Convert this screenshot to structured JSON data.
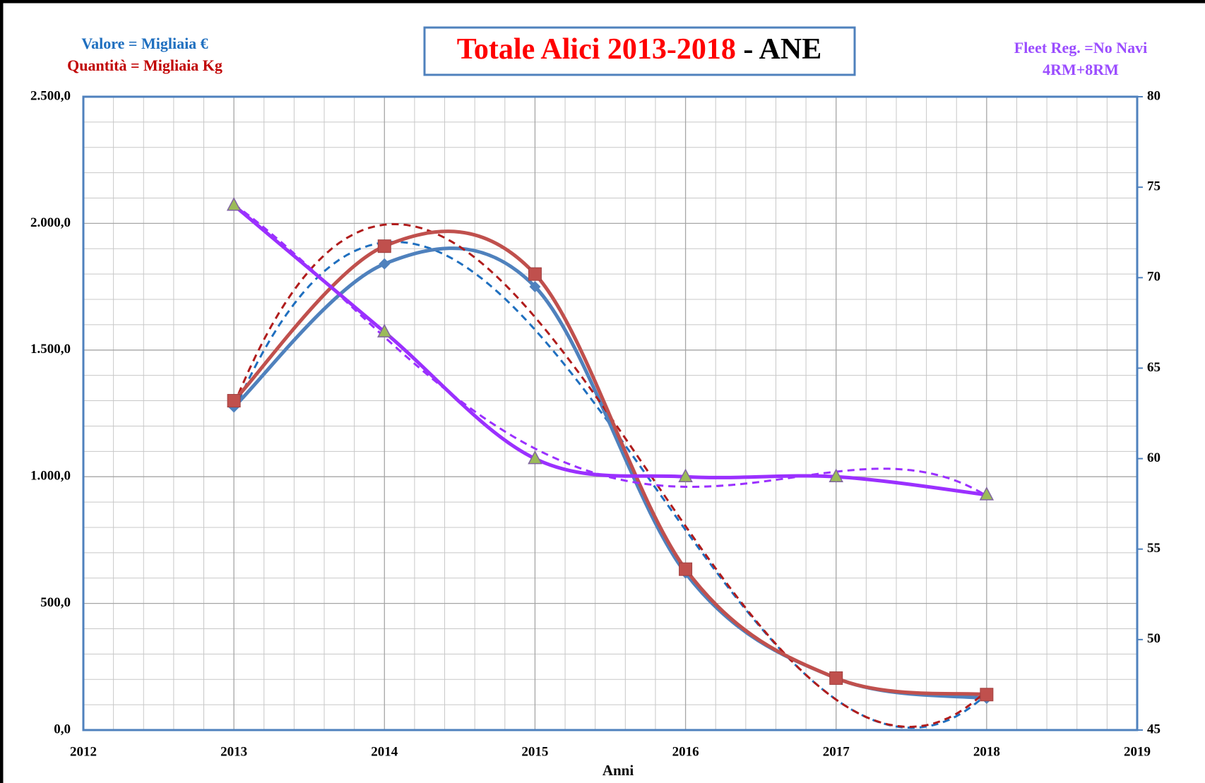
{
  "chart_data": {
    "type": "line",
    "title": [
      "Totale Alici 2013-2018",
      " - ANE"
    ],
    "annotations": [
      "4RM+8RM"
    ],
    "x_label": "Anni",
    "x": [
      2013,
      2014,
      2015,
      2016,
      2017,
      2018
    ],
    "xlim": [
      2012,
      2019
    ],
    "xticks": [
      2012,
      2013,
      2014,
      2015,
      2016,
      2017,
      2018,
      2019
    ],
    "ylim": [
      0,
      2500
    ],
    "yticks": [
      {
        "value": 0,
        "label": "0,0"
      },
      {
        "value": 500,
        "label": "500,0"
      },
      {
        "value": 1000,
        "label": "1.000,0"
      },
      {
        "value": 1500,
        "label": "1.500,0"
      },
      {
        "value": 2000,
        "label": "2.000,0"
      },
      {
        "value": 2500,
        "label": "2.500,0"
      }
    ],
    "y2lim": [
      45,
      80
    ],
    "y2ticks": [
      45,
      50,
      55,
      60,
      65,
      70,
      75,
      80
    ],
    "grid": true,
    "series": [
      {
        "name": "Valore = Migliaia €",
        "color": "#4f81bd",
        "marker": "diamond",
        "trend_color": "#1f6fbf",
        "values": [
          1275,
          1840,
          1750,
          620,
          205,
          125
        ]
      },
      {
        "name": "Quantità = Migliaia Kg",
        "color": "#c0504d",
        "marker": "square",
        "trend_color": "#b01c1c",
        "values": [
          1300,
          1910,
          1800,
          635,
          205,
          140
        ]
      },
      {
        "name": "Fleet Reg. =No Navi",
        "color": "#9b30ff",
        "marker": "triangle",
        "trend_color": "#9b30ff",
        "axis": "y2",
        "values": [
          74,
          67,
          60,
          59,
          59,
          58
        ]
      }
    ]
  }
}
